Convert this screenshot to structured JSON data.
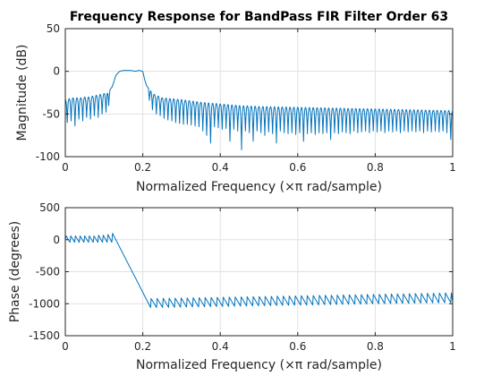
{
  "colors": {
    "trace": "#0072bd"
  },
  "chart_data": [
    {
      "type": "line",
      "title": "Frequency Response for BandPass FIR Filter Order 63",
      "xlabel": "Normalized Frequency  (×π rad/sample)",
      "ylabel": "Magnitude (dB)",
      "xlim": [
        0,
        1
      ],
      "ylim": [
        -100,
        50
      ],
      "xticks": [
        "0",
        "0.2",
        "0.4",
        "0.6",
        "0.8",
        "1"
      ],
      "xtick_values": [
        0,
        0.2,
        0.4,
        0.6,
        0.8,
        1
      ],
      "yticks": [
        "-100",
        "-50",
        "0",
        "50"
      ],
      "ytick_values": [
        -100,
        -50,
        0,
        50
      ],
      "grid": true,
      "series": [
        {
          "x": [
            0,
            0.01,
            0.02,
            0.03,
            0.04,
            0.05,
            0.06,
            0.07,
            0.08,
            0.09,
            0.1,
            0.11,
            0.115,
            0.12,
            0.125,
            0.13,
            0.14,
            0.15,
            0.16,
            0.17,
            0.18,
            0.19,
            0.2,
            0.205,
            0.21,
            0.215,
            0.22,
            0.23,
            0.25,
            0.3,
            0.35,
            0.4,
            0.45,
            0.5,
            0.6,
            0.7,
            0.8,
            0.9,
            1.0
          ],
          "y": [
            -33,
            -32,
            -31,
            -31,
            -31,
            -30,
            -30,
            -29,
            -28,
            -27,
            -26,
            -23,
            -21,
            -19,
            -13,
            -5,
            0,
            1,
            1,
            1,
            0,
            1,
            0,
            -10,
            -17,
            -20,
            -22,
            -27,
            -31,
            -33,
            -36,
            -38,
            -40,
            -41,
            -42,
            -43,
            -44,
            -45,
            -46
          ],
          "nulls": [
            {
              "x": 0.005,
              "y": -60
            },
            {
              "x": 0.015,
              "y": -58
            },
            {
              "x": 0.025,
              "y": -64
            },
            {
              "x": 0.035,
              "y": -56
            },
            {
              "x": 0.045,
              "y": -58
            },
            {
              "x": 0.055,
              "y": -54
            },
            {
              "x": 0.065,
              "y": -56
            },
            {
              "x": 0.075,
              "y": -52
            },
            {
              "x": 0.085,
              "y": -54
            },
            {
              "x": 0.095,
              "y": -50
            },
            {
              "x": 0.105,
              "y": -48
            },
            {
              "x": 0.112,
              "y": -40
            },
            {
              "x": 0.217,
              "y": -34
            },
            {
              "x": 0.225,
              "y": -45
            },
            {
              "x": 0.235,
              "y": -50
            },
            {
              "x": 0.245,
              "y": -52
            },
            {
              "x": 0.255,
              "y": -55
            },
            {
              "x": 0.265,
              "y": -57
            },
            {
              "x": 0.275,
              "y": -58
            },
            {
              "x": 0.285,
              "y": -60
            },
            {
              "x": 0.295,
              "y": -61
            },
            {
              "x": 0.305,
              "y": -62
            },
            {
              "x": 0.315,
              "y": -62
            },
            {
              "x": 0.325,
              "y": -63
            },
            {
              "x": 0.335,
              "y": -64
            },
            {
              "x": 0.345,
              "y": -65
            },
            {
              "x": 0.355,
              "y": -70
            },
            {
              "x": 0.365,
              "y": -75
            },
            {
              "x": 0.375,
              "y": -84
            },
            {
              "x": 0.385,
              "y": -65
            },
            {
              "x": 0.395,
              "y": -66
            },
            {
              "x": 0.405,
              "y": -68
            },
            {
              "x": 0.415,
              "y": -67
            },
            {
              "x": 0.425,
              "y": -82
            },
            {
              "x": 0.435,
              "y": -68
            },
            {
              "x": 0.445,
              "y": -70
            },
            {
              "x": 0.455,
              "y": -92
            },
            {
              "x": 0.465,
              "y": -70
            },
            {
              "x": 0.475,
              "y": -72
            },
            {
              "x": 0.485,
              "y": -82
            },
            {
              "x": 0.495,
              "y": -70
            },
            {
              "x": 0.505,
              "y": -72
            },
            {
              "x": 0.515,
              "y": -75
            },
            {
              "x": 0.525,
              "y": -71
            },
            {
              "x": 0.535,
              "y": -73
            },
            {
              "x": 0.545,
              "y": -84
            },
            {
              "x": 0.555,
              "y": -70
            },
            {
              "x": 0.565,
              "y": -72
            },
            {
              "x": 0.575,
              "y": -73
            },
            {
              "x": 0.585,
              "y": -72
            },
            {
              "x": 0.595,
              "y": -74
            },
            {
              "x": 0.605,
              "y": -72
            },
            {
              "x": 0.615,
              "y": -82
            },
            {
              "x": 0.625,
              "y": -73
            },
            {
              "x": 0.635,
              "y": -72
            },
            {
              "x": 0.645,
              "y": -74
            },
            {
              "x": 0.655,
              "y": -72
            },
            {
              "x": 0.665,
              "y": -73
            },
            {
              "x": 0.675,
              "y": -72
            },
            {
              "x": 0.685,
              "y": -80
            },
            {
              "x": 0.695,
              "y": -72
            },
            {
              "x": 0.705,
              "y": -73
            },
            {
              "x": 0.715,
              "y": -71
            },
            {
              "x": 0.725,
              "y": -72
            },
            {
              "x": 0.735,
              "y": -73
            },
            {
              "x": 0.745,
              "y": -70
            },
            {
              "x": 0.755,
              "y": -72
            },
            {
              "x": 0.765,
              "y": -71
            },
            {
              "x": 0.775,
              "y": -70
            },
            {
              "x": 0.785,
              "y": -72
            },
            {
              "x": 0.795,
              "y": -70
            },
            {
              "x": 0.805,
              "y": -71
            },
            {
              "x": 0.815,
              "y": -70
            },
            {
              "x": 0.825,
              "y": -72
            },
            {
              "x": 0.835,
              "y": -70
            },
            {
              "x": 0.845,
              "y": -71
            },
            {
              "x": 0.855,
              "y": -70
            },
            {
              "x": 0.865,
              "y": -72
            },
            {
              "x": 0.875,
              "y": -70
            },
            {
              "x": 0.885,
              "y": -71
            },
            {
              "x": 0.895,
              "y": -70
            },
            {
              "x": 0.905,
              "y": -71
            },
            {
              "x": 0.915,
              "y": -70
            },
            {
              "x": 0.925,
              "y": -72
            },
            {
              "x": 0.935,
              "y": -70
            },
            {
              "x": 0.945,
              "y": -71
            },
            {
              "x": 0.955,
              "y": -70
            },
            {
              "x": 0.965,
              "y": -71
            },
            {
              "x": 0.975,
              "y": -70
            },
            {
              "x": 0.985,
              "y": -72
            },
            {
              "x": 0.995,
              "y": -80
            }
          ]
        }
      ]
    },
    {
      "type": "line",
      "xlabel": "Normalized Frequency  (×π rad/sample)",
      "ylabel": "Phase (degrees)",
      "xlim": [
        0,
        1
      ],
      "ylim": [
        -1500,
        500
      ],
      "xticks": [
        "0",
        "0.2",
        "0.4",
        "0.6",
        "0.8",
        "1"
      ],
      "xtick_values": [
        0,
        0.2,
        0.4,
        0.6,
        0.8,
        1
      ],
      "yticks": [
        "-1500",
        "-1000",
        "-500",
        "0",
        "500"
      ],
      "ytick_values": [
        -1500,
        -1000,
        -500,
        0,
        500
      ],
      "grid": true,
      "series": [
        {
          "x": [
            0,
            0.002,
            0.012,
            0.014,
            0.024,
            0.026,
            0.036,
            0.038,
            0.048,
            0.05,
            0.06,
            0.062,
            0.072,
            0.074,
            0.084,
            0.086,
            0.096,
            0.098,
            0.108,
            0.11,
            0.12,
            0.122,
            0.22,
            0.222,
            0.23,
            0.232,
            0.24,
            0.26,
            0.28,
            0.3,
            0.4,
            0.5,
            0.6,
            0.7,
            0.8,
            0.9,
            1.0
          ],
          "y": [
            0,
            60,
            -40,
            60,
            -40,
            60,
            -40,
            60,
            -40,
            60,
            -40,
            60,
            -40,
            60,
            -40,
            70,
            -40,
            70,
            -40,
            80,
            -40,
            100,
            -1060,
            -920,
            -1060,
            -920,
            -1050,
            -1040,
            -1030,
            -1020,
            -1000,
            -980,
            -960,
            -940,
            -920,
            -900,
            -880
          ],
          "sawtooth": {
            "start": 0.22,
            "end": 1.0,
            "period": 0.0155,
            "low_start": -1060,
            "high_start": -920,
            "low_end": -980,
            "high_end": -830
          }
        }
      ]
    }
  ]
}
